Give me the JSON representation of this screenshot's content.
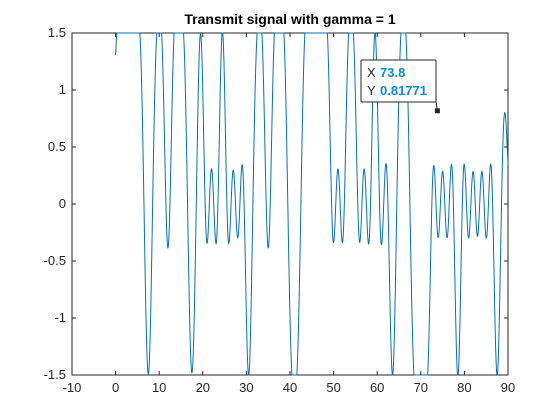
{
  "chart_data": {
    "type": "line",
    "title": "Transmit signal with gamma = 1",
    "xlabel": "",
    "ylabel": "",
    "xlim": [
      -10,
      90
    ],
    "ylim": [
      -1.5,
      1.5
    ],
    "xticks": [
      -10,
      0,
      10,
      20,
      30,
      40,
      50,
      60,
      70,
      80,
      90
    ],
    "yticks": [
      -1.5,
      -1,
      -0.5,
      0,
      0.5,
      1,
      1.5
    ],
    "xtick_labels": [
      "-10",
      "0",
      "10",
      "20",
      "30",
      "40",
      "50",
      "60",
      "70",
      "80",
      "90"
    ],
    "ytick_labels": [
      "-1.5",
      "-1",
      "-0.5",
      "0",
      "0.5",
      "1",
      "1.5"
    ],
    "grid": false,
    "line_color": "#0072bd",
    "series": [
      {
        "symbol_period": 1,
        "x_start": 0,
        "symbols": [
          1,
          1,
          1,
          1,
          1,
          1,
          1,
          -1,
          -1,
          1,
          1,
          1,
          -1,
          1,
          1,
          1,
          1,
          -1,
          -1,
          1,
          1,
          -1,
          1,
          -1,
          1,
          1,
          -1,
          1,
          -1,
          1,
          -1,
          -1,
          1,
          1,
          1,
          -1,
          1,
          1,
          1,
          1,
          -1,
          -1,
          -1,
          1,
          1,
          1,
          1,
          1,
          1,
          1,
          -1,
          1,
          -1,
          1,
          1,
          1,
          -1,
          1,
          -1,
          1,
          1,
          -1,
          1,
          -1,
          -1,
          1,
          1,
          1,
          -1,
          -1,
          -1,
          -1,
          -1,
          1,
          -1,
          1,
          -1,
          1,
          -1,
          -1,
          1,
          -1,
          1,
          -1,
          1,
          -1,
          1,
          -1,
          -1,
          1
        ]
      }
    ]
  },
  "datatip": {
    "x_key": "X",
    "x_value": "73.8",
    "y_key": "Y",
    "y_value": "0.81771",
    "x": 73.8,
    "y": 0.81771
  }
}
